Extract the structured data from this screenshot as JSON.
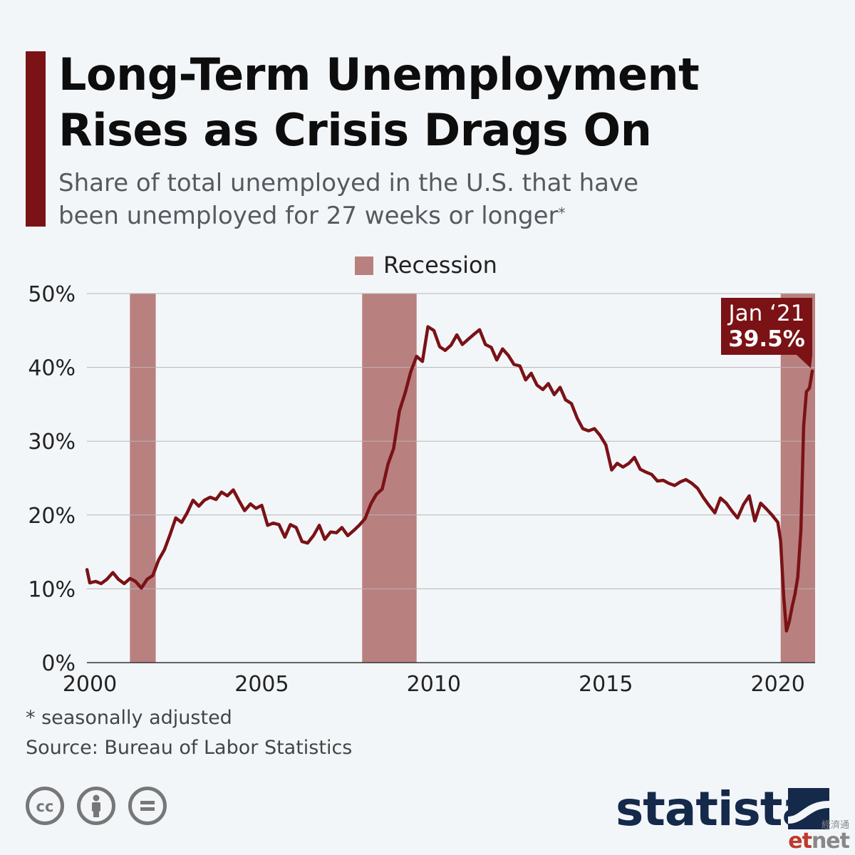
{
  "header": {
    "title_line1": "Long-Term Unemployment",
    "title_line2": "Rises as Crisis Drags On",
    "subtitle_line1": "Share of total unemployed in the U.S. that have",
    "subtitle_line2": "been unemployed for 27 weeks or longer",
    "subtitle_marker": "*"
  },
  "legend": {
    "label": "Recession",
    "color": "#b98080"
  },
  "colors": {
    "accent": "#7a1216",
    "line": "#7a1216",
    "recession": "#b98080",
    "grid": "#b5b5b5"
  },
  "annotation": {
    "label_line1": "Jan ‘21",
    "label_line2": "39.5%"
  },
  "footer": {
    "footnote": "* seasonally adjusted",
    "source": "Source: Bureau of Labor Statistics",
    "license_icons": [
      "creative-commons-icon",
      "attribution-icon",
      "no-derivatives-icon"
    ],
    "brand": "statista",
    "watermark_cn": "經濟通",
    "watermark_brand_a": "et",
    "watermark_brand_b": "net"
  },
  "chart_data": {
    "type": "line",
    "title": "Long-Term Unemployment Rises as Crisis Drags On",
    "ylabel": "",
    "xlabel": "",
    "ylim": [
      0,
      50
    ],
    "xlim": [
      1999.917,
      2021.083
    ],
    "y_ticks": [
      "0%",
      "10%",
      "20%",
      "30%",
      "40%",
      "50%"
    ],
    "y_tick_values": [
      0,
      10,
      20,
      30,
      40,
      50
    ],
    "x_ticks": [
      "2000",
      "2005",
      "2010",
      "2015",
      "2020"
    ],
    "x_tick_values": [
      2000,
      2005,
      2010,
      2015,
      2020
    ],
    "grid": true,
    "recessions": [
      {
        "start": 2001.167,
        "end": 2001.917
      },
      {
        "start": 2007.917,
        "end": 2009.5
      },
      {
        "start": 2020.083,
        "end": 2021.083
      }
    ],
    "series": [
      {
        "name": "",
        "points": [
          [
            1999.92,
            12.6
          ],
          [
            2000.0,
            10.8
          ],
          [
            2000.17,
            11.0
          ],
          [
            2000.33,
            10.7
          ],
          [
            2000.5,
            11.3
          ],
          [
            2000.67,
            12.2
          ],
          [
            2000.83,
            11.3
          ],
          [
            2001.0,
            10.7
          ],
          [
            2001.17,
            11.4
          ],
          [
            2001.33,
            11.0
          ],
          [
            2001.5,
            10.1
          ],
          [
            2001.67,
            11.3
          ],
          [
            2001.83,
            11.8
          ],
          [
            2002.0,
            13.9
          ],
          [
            2002.17,
            15.3
          ],
          [
            2002.33,
            17.3
          ],
          [
            2002.5,
            19.6
          ],
          [
            2002.67,
            19.0
          ],
          [
            2002.83,
            20.3
          ],
          [
            2003.0,
            22.0
          ],
          [
            2003.17,
            21.2
          ],
          [
            2003.33,
            22.0
          ],
          [
            2003.5,
            22.4
          ],
          [
            2003.67,
            22.1
          ],
          [
            2003.83,
            23.1
          ],
          [
            2004.0,
            22.6
          ],
          [
            2004.17,
            23.4
          ],
          [
            2004.33,
            22.0
          ],
          [
            2004.5,
            20.6
          ],
          [
            2004.67,
            21.5
          ],
          [
            2004.83,
            20.9
          ],
          [
            2005.0,
            21.3
          ],
          [
            2005.17,
            18.6
          ],
          [
            2005.33,
            18.9
          ],
          [
            2005.5,
            18.7
          ],
          [
            2005.67,
            17.0
          ],
          [
            2005.83,
            18.7
          ],
          [
            2006.0,
            18.3
          ],
          [
            2006.17,
            16.4
          ],
          [
            2006.33,
            16.2
          ],
          [
            2006.5,
            17.2
          ],
          [
            2006.67,
            18.6
          ],
          [
            2006.83,
            16.7
          ],
          [
            2007.0,
            17.7
          ],
          [
            2007.17,
            17.6
          ],
          [
            2007.33,
            18.3
          ],
          [
            2007.5,
            17.2
          ],
          [
            2007.67,
            17.9
          ],
          [
            2007.83,
            18.6
          ],
          [
            2008.0,
            19.5
          ],
          [
            2008.17,
            21.5
          ],
          [
            2008.33,
            22.8
          ],
          [
            2008.5,
            23.5
          ],
          [
            2008.67,
            26.9
          ],
          [
            2008.83,
            29.0
          ],
          [
            2009.0,
            34.1
          ],
          [
            2009.17,
            36.6
          ],
          [
            2009.33,
            39.4
          ],
          [
            2009.5,
            41.5
          ],
          [
            2009.67,
            40.8
          ],
          [
            2009.83,
            45.5
          ],
          [
            2010.0,
            45.0
          ],
          [
            2010.17,
            42.8
          ],
          [
            2010.33,
            42.3
          ],
          [
            2010.5,
            43.0
          ],
          [
            2010.67,
            44.4
          ],
          [
            2010.83,
            43.1
          ],
          [
            2011.0,
            43.8
          ],
          [
            2011.17,
            44.5
          ],
          [
            2011.33,
            45.1
          ],
          [
            2011.5,
            43.1
          ],
          [
            2011.67,
            42.7
          ],
          [
            2011.83,
            41.0
          ],
          [
            2012.0,
            42.5
          ],
          [
            2012.17,
            41.6
          ],
          [
            2012.33,
            40.4
          ],
          [
            2012.5,
            40.2
          ],
          [
            2012.67,
            38.3
          ],
          [
            2012.83,
            39.2
          ],
          [
            2013.0,
            37.6
          ],
          [
            2013.17,
            37.0
          ],
          [
            2013.33,
            37.8
          ],
          [
            2013.5,
            36.3
          ],
          [
            2013.67,
            37.3
          ],
          [
            2013.83,
            35.6
          ],
          [
            2014.0,
            35.1
          ],
          [
            2014.17,
            33.1
          ],
          [
            2014.33,
            31.7
          ],
          [
            2014.5,
            31.4
          ],
          [
            2014.67,
            31.7
          ],
          [
            2014.83,
            30.8
          ],
          [
            2015.0,
            29.5
          ],
          [
            2015.17,
            26.1
          ],
          [
            2015.33,
            27.0
          ],
          [
            2015.5,
            26.5
          ],
          [
            2015.67,
            27.0
          ],
          [
            2015.83,
            27.8
          ],
          [
            2016.0,
            26.2
          ],
          [
            2016.17,
            25.8
          ],
          [
            2016.33,
            25.5
          ],
          [
            2016.5,
            24.6
          ],
          [
            2016.67,
            24.7
          ],
          [
            2016.83,
            24.3
          ],
          [
            2017.0,
            24.0
          ],
          [
            2017.17,
            24.5
          ],
          [
            2017.33,
            24.8
          ],
          [
            2017.5,
            24.3
          ],
          [
            2017.67,
            23.6
          ],
          [
            2017.83,
            22.4
          ],
          [
            2018.0,
            21.3
          ],
          [
            2018.17,
            20.3
          ],
          [
            2018.33,
            22.3
          ],
          [
            2018.5,
            21.6
          ],
          [
            2018.67,
            20.5
          ],
          [
            2018.83,
            19.6
          ],
          [
            2019.0,
            21.4
          ],
          [
            2019.17,
            22.6
          ],
          [
            2019.33,
            19.2
          ],
          [
            2019.5,
            21.6
          ],
          [
            2019.67,
            20.8
          ],
          [
            2019.83,
            20.0
          ],
          [
            2020.0,
            19.0
          ],
          [
            2020.08,
            16.5
          ],
          [
            2020.17,
            9.0
          ],
          [
            2020.25,
            4.3
          ],
          [
            2020.33,
            5.5
          ],
          [
            2020.42,
            7.7
          ],
          [
            2020.5,
            9.3
          ],
          [
            2020.58,
            11.6
          ],
          [
            2020.67,
            18.0
          ],
          [
            2020.75,
            32.0
          ],
          [
            2020.83,
            36.7
          ],
          [
            2020.92,
            37.2
          ],
          [
            2021.0,
            39.5
          ]
        ]
      }
    ],
    "annotations": [
      {
        "x": 2021.0,
        "y": 39.5,
        "text": "Jan ‘21 39.5%"
      }
    ]
  }
}
